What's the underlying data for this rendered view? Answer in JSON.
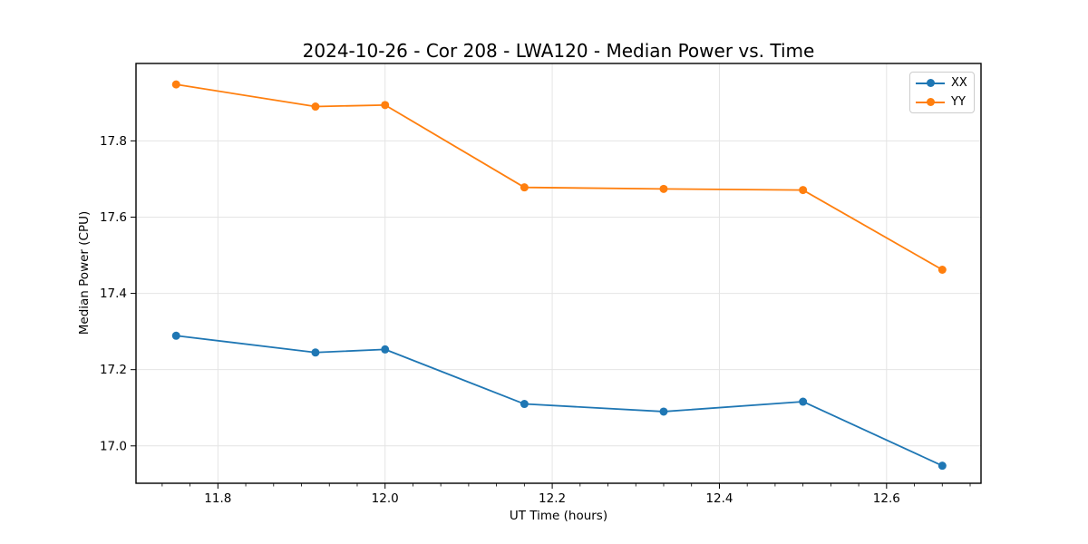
{
  "figure": {
    "background": "#ffffff"
  },
  "chart_data": {
    "type": "line",
    "title": "2024-10-26 - Cor 208 - LWA120 - Median Power vs. Time",
    "xlabel": "UT Time (hours)",
    "ylabel": "Median Power (CPU)",
    "x": [
      11.75,
      11.9167,
      12.0,
      12.1667,
      12.3333,
      12.5,
      12.6667
    ],
    "series": [
      {
        "name": "XX",
        "color": "#1f77b4",
        "values": [
          17.289,
          17.245,
          17.253,
          17.11,
          17.09,
          17.116,
          16.948
        ]
      },
      {
        "name": "YY",
        "color": "#ff7f0e",
        "values": [
          17.948,
          17.89,
          17.894,
          17.678,
          17.674,
          17.671,
          17.462
        ]
      }
    ],
    "xlim": [
      11.702,
      12.713
    ],
    "ylim": [
      16.902,
      18.003
    ],
    "xticks": {
      "values": [
        11.8,
        12.0,
        12.2,
        12.4,
        12.6
      ],
      "labels": [
        "11.8",
        "12.0",
        "12.2",
        "12.4",
        "12.6"
      ]
    },
    "yticks": {
      "values": [
        17.0,
        17.2,
        17.4,
        17.6,
        17.8
      ],
      "labels": [
        "17.0",
        "17.2",
        "17.4",
        "17.6",
        "17.8"
      ]
    },
    "x_minor_step": 0.0333333,
    "grid": true,
    "grid_color": "#e4e4e4",
    "spine_color": "#000000",
    "tick_color": "#000000",
    "marker": "circle",
    "marker_radius": 4.5,
    "line_width": 1.8,
    "legend_position": "upper right"
  }
}
